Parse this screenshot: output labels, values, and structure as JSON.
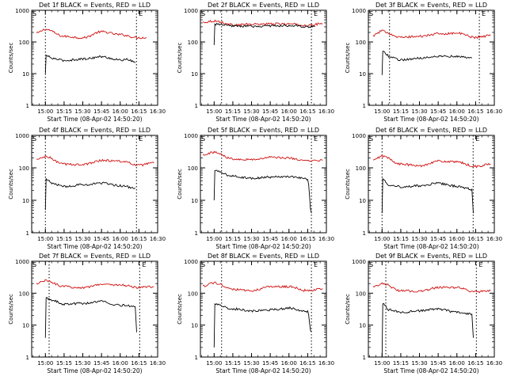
{
  "chart_data": [
    {
      "title": "Det 1f BLACK = Events, RED = LLD",
      "type": "line",
      "xlabel": "Start Time (08-Apr-02 14:50:20)",
      "ylabel": "Counts/sec",
      "yscale": "log",
      "ylim": [
        1,
        1000
      ],
      "xlim": [
        14.817,
        16.5
      ],
      "x_ticks": [
        "15:00",
        "15:15",
        "15:30",
        "15:45",
        "16:00",
        "16:15",
        "16:30"
      ],
      "y_ticks": [
        "1",
        "10",
        "100",
        "1000"
      ],
      "markers": [
        "S",
        "E"
      ],
      "vlines": [
        15.0,
        16.217
      ],
      "series": [
        {
          "color": "#d01010",
          "x": [
            14.88,
            15.0,
            15.25,
            15.5,
            15.75,
            16.0,
            16.25,
            16.35
          ],
          "y": [
            190,
            250,
            150,
            135,
            210,
            170,
            135,
            140
          ]
        },
        {
          "color": "#000000",
          "x": [
            15.0,
            15.01,
            15.1,
            15.25,
            15.5,
            15.75,
            16.0,
            16.1,
            16.2
          ],
          "y": [
            10,
            37,
            30,
            26,
            29,
            34,
            27,
            28,
            22
          ]
        }
      ]
    },
    {
      "title": "Det 2f BLACK = Events, RED = LLD",
      "type": "line",
      "xlabel": "Start Time (08-Apr-02 14:50:20)",
      "ylabel": "Counts/sec",
      "yscale": "log",
      "ylim": [
        1,
        1000
      ],
      "xlim": [
        14.817,
        16.5
      ],
      "x_ticks": [
        "15:00",
        "15:15",
        "15:30",
        "15:45",
        "16:00",
        "16:15",
        "16:30"
      ],
      "y_ticks": [
        "1",
        "10",
        "100",
        "1000"
      ],
      "markers": [
        "S",
        "E"
      ],
      "vlines": [
        15.1,
        16.3
      ],
      "series": [
        {
          "color": "#d01010",
          "x": [
            14.85,
            15.0,
            15.25,
            15.5,
            15.75,
            16.0,
            16.25,
            16.45
          ],
          "y": [
            420,
            460,
            350,
            360,
            370,
            370,
            330,
            380
          ]
        },
        {
          "color": "#000000",
          "x": [
            15.0,
            15.01,
            15.25,
            15.5,
            15.75,
            16.0,
            16.25,
            16.35
          ],
          "y": [
            80,
            360,
            320,
            310,
            320,
            330,
            300,
            310
          ]
        }
      ]
    },
    {
      "title": "Det 3f BLACK = Events, RED = LLD",
      "type": "line",
      "xlabel": "Start Time (08-Apr-02 14:50:20)",
      "ylabel": "Counts/sec",
      "yscale": "log",
      "ylim": [
        1,
        1000
      ],
      "xlim": [
        14.817,
        16.5
      ],
      "x_ticks": [
        "15:00",
        "15:15",
        "15:30",
        "15:45",
        "16:00",
        "16:15",
        "16:30"
      ],
      "y_ticks": [
        "1",
        "10",
        "100",
        "1000"
      ],
      "markers": [
        "S",
        "E"
      ],
      "vlines": [
        15.1,
        16.3
      ],
      "series": [
        {
          "color": "#d01010",
          "x": [
            14.88,
            15.0,
            15.25,
            15.5,
            15.75,
            16.0,
            16.25,
            16.45
          ],
          "y": [
            160,
            220,
            140,
            150,
            180,
            190,
            140,
            160
          ]
        },
        {
          "color": "#000000",
          "x": [
            15.0,
            15.01,
            15.1,
            15.25,
            15.5,
            15.75,
            16.0,
            16.2
          ],
          "y": [
            9,
            50,
            35,
            27,
            31,
            36,
            35,
            31
          ]
        }
      ]
    },
    {
      "title": "Det 4f BLACK = Events, RED = LLD",
      "type": "line",
      "xlabel": "Start Time (08-Apr-02 14:50:20)",
      "ylabel": "Counts/sec",
      "yscale": "log",
      "ylim": [
        1,
        1000
      ],
      "xlim": [
        14.817,
        16.5
      ],
      "x_ticks": [
        "15:00",
        "15:15",
        "15:30",
        "15:45",
        "16:00",
        "16:15",
        "16:30"
      ],
      "y_ticks": [
        "1",
        "10",
        "100",
        "1000"
      ],
      "markers": [
        "S",
        "E"
      ],
      "vlines": [
        15.0,
        16.217
      ],
      "series": [
        {
          "color": "#d01010",
          "x": [
            14.88,
            15.0,
            15.25,
            15.5,
            15.75,
            16.0,
            16.25,
            16.45
          ],
          "y": [
            180,
            220,
            130,
            125,
            170,
            160,
            120,
            140
          ]
        },
        {
          "color": "#000000",
          "x": [
            15.0,
            15.01,
            15.1,
            15.25,
            15.5,
            15.75,
            16.0,
            16.2
          ],
          "y": [
            5,
            45,
            32,
            27,
            30,
            34,
            28,
            24
          ]
        }
      ]
    },
    {
      "title": "Det 5f BLACK = Events, RED = LLD",
      "type": "line",
      "xlabel": "Start Time (08-Apr-02 14:50:20)",
      "ylabel": "Counts/sec",
      "yscale": "log",
      "ylim": [
        1,
        1000
      ],
      "xlim": [
        14.817,
        16.5
      ],
      "x_ticks": [
        "15:00",
        "15:15",
        "15:30",
        "15:45",
        "16:00",
        "16:15",
        "16:30"
      ],
      "y_ticks": [
        "1",
        "10",
        "100",
        "1000"
      ],
      "markers": [
        "S",
        "E"
      ],
      "vlines": [
        15.1,
        16.3
      ],
      "series": [
        {
          "color": "#d01010",
          "x": [
            14.85,
            15.0,
            15.25,
            15.5,
            15.75,
            16.0,
            16.25,
            16.45
          ],
          "y": [
            260,
            300,
            190,
            180,
            210,
            200,
            160,
            170
          ]
        },
        {
          "color": "#000000",
          "x": [
            15.0,
            15.01,
            15.25,
            15.5,
            15.75,
            16.0,
            16.25,
            16.3
          ],
          "y": [
            10,
            80,
            55,
            48,
            52,
            55,
            45,
            4
          ]
        }
      ]
    },
    {
      "title": "Det 6f BLACK = Events, RED = LLD",
      "type": "line",
      "xlabel": "Start Time (08-Apr-02 14:50:20)",
      "ylabel": "Counts/sec",
      "yscale": "log",
      "ylim": [
        1,
        1000
      ],
      "xlim": [
        14.817,
        16.5
      ],
      "x_ticks": [
        "15:00",
        "15:15",
        "15:30",
        "15:45",
        "16:00",
        "16:15",
        "16:30"
      ],
      "y_ticks": [
        "1",
        "10",
        "100",
        "1000"
      ],
      "markers": [
        "S",
        "E"
      ],
      "vlines": [
        15.0,
        16.217
      ],
      "series": [
        {
          "color": "#d01010",
          "x": [
            14.88,
            15.0,
            15.25,
            15.5,
            15.75,
            16.0,
            16.25,
            16.45
          ],
          "y": [
            170,
            230,
            130,
            115,
            160,
            150,
            110,
            130
          ]
        },
        {
          "color": "#000000",
          "x": [
            15.0,
            15.01,
            15.1,
            15.25,
            15.5,
            15.75,
            16.0,
            16.2,
            16.22
          ],
          "y": [
            4,
            45,
            30,
            26,
            28,
            33,
            27,
            22,
            4
          ]
        }
      ]
    },
    {
      "title": "Det 7f BLACK = Events, RED = LLD",
      "type": "line",
      "xlabel": "Start Time (08-Apr-02 14:50:20)",
      "ylabel": "Counts/sec",
      "yscale": "log",
      "ylim": [
        1,
        1000
      ],
      "xlim": [
        14.817,
        16.5
      ],
      "x_ticks": [
        "15:00",
        "15:15",
        "15:30",
        "15:45",
        "16:00",
        "16:15",
        "16:30"
      ],
      "y_ticks": [
        "1",
        "10",
        "100",
        "1000"
      ],
      "markers": [
        "S",
        "E"
      ],
      "vlines": [
        15.05,
        16.26
      ],
      "series": [
        {
          "color": "#d01010",
          "x": [
            14.88,
            15.0,
            15.25,
            15.5,
            15.75,
            16.0,
            16.25,
            16.45
          ],
          "y": [
            200,
            250,
            160,
            150,
            190,
            180,
            150,
            160
          ]
        },
        {
          "color": "#000000",
          "x": [
            15.0,
            15.01,
            15.1,
            15.25,
            15.5,
            15.75,
            16.0,
            16.2,
            16.22
          ],
          "y": [
            4,
            70,
            58,
            45,
            48,
            55,
            42,
            38,
            6
          ]
        }
      ]
    },
    {
      "title": "Det 8f BLACK = Events, RED = LLD",
      "type": "line",
      "xlabel": "Start Time (08-Apr-02 14:50:20)",
      "ylabel": "Counts/sec",
      "yscale": "log",
      "ylim": [
        1,
        1000
      ],
      "xlim": [
        14.817,
        16.5
      ],
      "x_ticks": [
        "15:00",
        "15:15",
        "15:30",
        "15:45",
        "16:00",
        "16:15",
        "16:30"
      ],
      "y_ticks": [
        "1",
        "10",
        "100",
        "1000"
      ],
      "markers": [
        "S",
        "E"
      ],
      "vlines": [
        15.1,
        16.3
      ],
      "series": [
        {
          "color": "#d01010",
          "x": [
            14.85,
            15.0,
            15.25,
            15.5,
            15.75,
            16.0,
            16.25,
            16.45
          ],
          "y": [
            170,
            210,
            130,
            120,
            160,
            160,
            120,
            140
          ]
        },
        {
          "color": "#000000",
          "x": [
            15.0,
            15.01,
            15.25,
            15.5,
            15.75,
            16.0,
            16.25,
            16.3
          ],
          "y": [
            2,
            45,
            32,
            28,
            30,
            34,
            26,
            6
          ]
        }
      ]
    },
    {
      "title": "Det 9f BLACK = Events, RED = LLD",
      "type": "line",
      "xlabel": "Start Time (08-Apr-02 14:50:20)",
      "ylabel": "Counts/sec",
      "yscale": "log",
      "ylim": [
        1,
        1000
      ],
      "xlim": [
        14.817,
        16.5
      ],
      "x_ticks": [
        "15:00",
        "15:15",
        "15:30",
        "15:45",
        "16:00",
        "16:15",
        "16:30"
      ],
      "y_ticks": [
        "1",
        "10",
        "100",
        "1000"
      ],
      "markers": [
        "S",
        "E"
      ],
      "vlines": [
        15.05,
        16.26
      ],
      "series": [
        {
          "color": "#d01010",
          "x": [
            14.88,
            15.0,
            15.25,
            15.5,
            15.75,
            16.0,
            16.25,
            16.45
          ],
          "y": [
            160,
            200,
            120,
            115,
            150,
            150,
            110,
            120
          ]
        },
        {
          "color": "#000000",
          "x": [
            15.0,
            15.01,
            15.1,
            15.25,
            15.5,
            15.75,
            16.0,
            16.2,
            16.22
          ],
          "y": [
            1,
            45,
            30,
            25,
            28,
            32,
            25,
            22,
            4
          ]
        }
      ]
    }
  ]
}
